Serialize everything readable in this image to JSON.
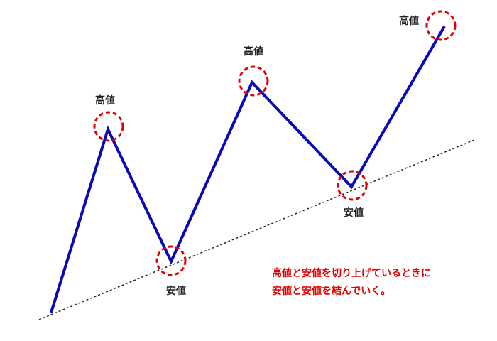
{
  "labels": [
    "高値",
    "安値",
    "高値",
    "安値",
    "高値"
  ],
  "note": {
    "lines": [
      "高値と安値を切り上げているときに",
      "安値と安値を結んでいく。"
    ]
  }
}
